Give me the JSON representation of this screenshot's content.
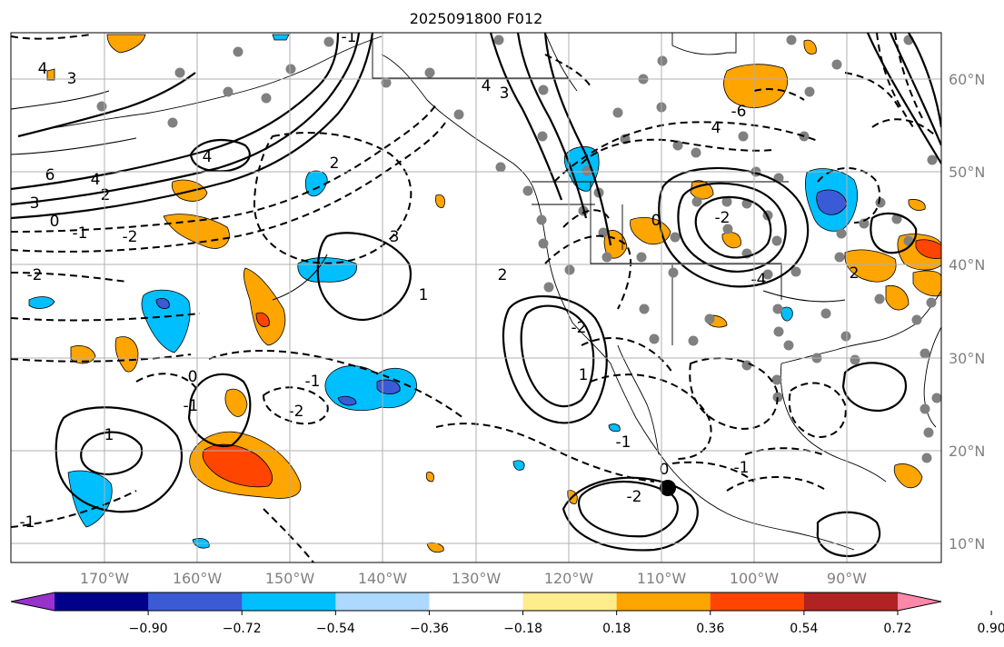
{
  "title": "2025091800 F012",
  "map": {
    "lon_labels": [
      "170°W",
      "160°W",
      "150°W",
      "140°W",
      "130°W",
      "120°W",
      "110°W",
      "100°W",
      "90°W"
    ],
    "lat_labels": [
      "60°N",
      "50°N",
      "40°N",
      "30°N",
      "20°N",
      "10°N"
    ],
    "contour_labels": [
      "4",
      "3",
      "6",
      "4",
      "3",
      "2",
      "0",
      "-1",
      "-2",
      "4",
      "2",
      "3",
      "-1",
      "-1",
      "1",
      "-2",
      "-1",
      "1",
      "0",
      "-2",
      "-1",
      "4",
      "3",
      "2",
      "-6",
      "4",
      "0",
      "-2",
      "-4",
      "-1",
      "-2",
      "0",
      "-2",
      "-1",
      "1",
      "2"
    ],
    "colors": {
      "neg_strong": "#3b5bd6",
      "neg_mid": "#00bfff",
      "neg_light": "#add8ff",
      "pos_mid": "#ffa500",
      "pos_strong": "#ff4500",
      "dot": "#808080",
      "grid": "#b0b0b0"
    }
  },
  "colorbar": {
    "tick_labels": [
      "−0.90",
      "−0.72",
      "−0.54",
      "−0.36",
      "−0.18",
      "0.18",
      "0.36",
      "0.54",
      "0.72",
      "0.90"
    ],
    "colors": [
      "#9932cc",
      "#00008b",
      "#3b5bd6",
      "#00bfff",
      "#add8ff",
      "#ffffff",
      "#ffec8b",
      "#ffa500",
      "#ff4500",
      "#b22222",
      "#ff88aa"
    ]
  }
}
